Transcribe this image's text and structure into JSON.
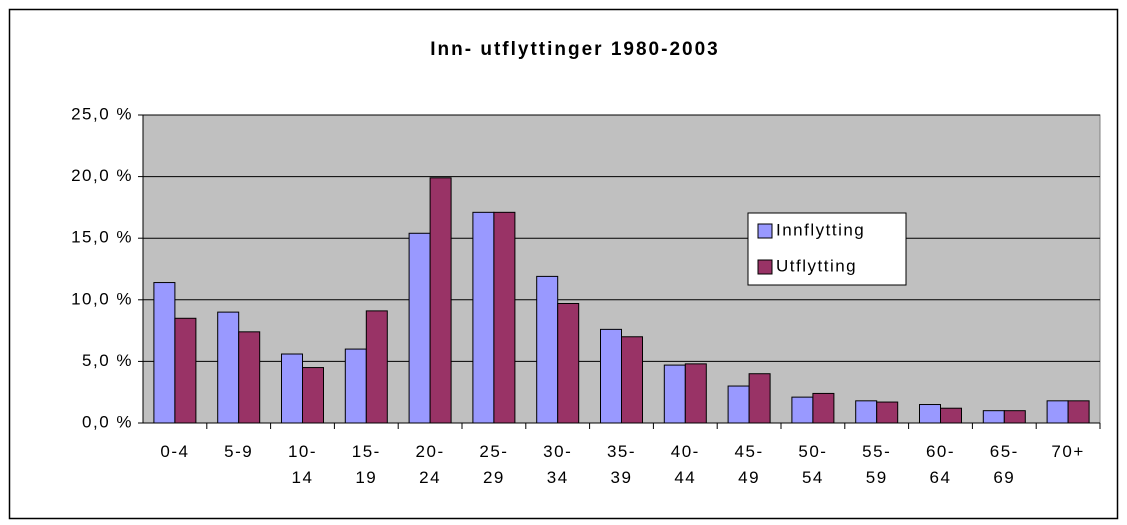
{
  "chart_data": {
    "type": "bar",
    "title": "Inn- utflyttinger 1980-2003",
    "categories": [
      "0-4",
      "5-9",
      "10-14",
      "15-19",
      "20-24",
      "25-29",
      "30-34",
      "35-39",
      "40-44",
      "45-49",
      "50-54",
      "55-59",
      "60-64",
      "65-69",
      "70+"
    ],
    "series": [
      {
        "name": "Innflytting",
        "color": "#9999ff",
        "values": [
          11.4,
          9.0,
          5.6,
          6.0,
          15.4,
          17.1,
          11.9,
          7.6,
          4.7,
          3.0,
          2.1,
          1.8,
          1.5,
          1.0,
          1.8
        ]
      },
      {
        "name": "Utflytting",
        "color": "#993366",
        "values": [
          8.5,
          7.4,
          4.5,
          9.1,
          19.9,
          17.1,
          9.7,
          7.0,
          4.8,
          4.0,
          2.4,
          1.7,
          1.2,
          1.0,
          1.8
        ]
      }
    ],
    "ylim": [
      0,
      25
    ],
    "yticks": [
      {
        "value": 0,
        "label": "0,0 %"
      },
      {
        "value": 5,
        "label": "5,0 %"
      },
      {
        "value": 10,
        "label": "10,0 %"
      },
      {
        "value": 15,
        "label": "15,0 %"
      },
      {
        "value": 20,
        "label": "20,0 %"
      },
      {
        "value": 25,
        "label": "25,0 %"
      }
    ],
    "grid": true,
    "plot_background": "#c0c0c0"
  }
}
